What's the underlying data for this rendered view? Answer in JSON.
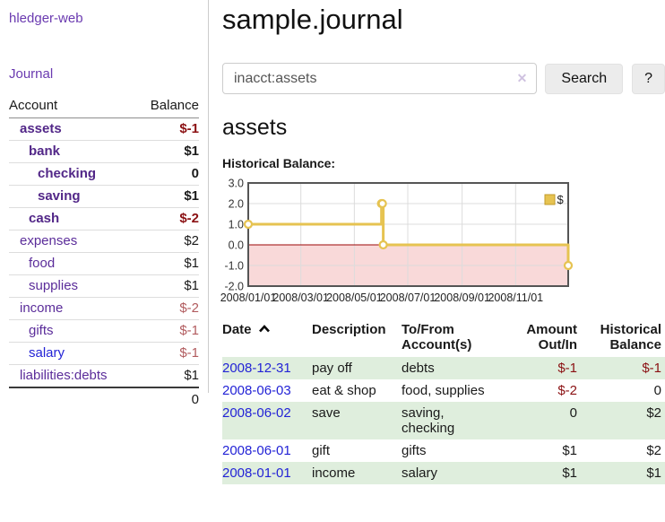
{
  "colors": {
    "link_purple": "#5b2d9a",
    "link_blue": "#2323d6",
    "negative_dark": "#8b1113",
    "negative_soft": "#b15b5e",
    "stripe_green": "#dfeedd",
    "button_bg": "#ececec",
    "chart_line_gold": "#e6c351",
    "negative_region_pink": "#f9d9d9",
    "zero_line_red": "#9c0606"
  },
  "sidebar": {
    "app_title": "hledger-web",
    "journal_label": "Journal",
    "accounts_table": {
      "account_header": "Account",
      "balance_header": "Balance",
      "rows": [
        {
          "name": "assets",
          "balance": "$-1",
          "level": 1,
          "matched": true
        },
        {
          "name": "bank",
          "balance": "$1",
          "level": 2,
          "matched": true
        },
        {
          "name": "checking",
          "balance": "0",
          "level": 3,
          "matched": true
        },
        {
          "name": "saving",
          "balance": "$1",
          "level": 3,
          "matched": true
        },
        {
          "name": "cash",
          "balance": "$-2",
          "level": 2,
          "matched": true
        },
        {
          "name": "expenses",
          "balance": "$2",
          "level": 1,
          "matched": false
        },
        {
          "name": "food",
          "balance": "$1",
          "level": 2,
          "matched": false
        },
        {
          "name": "supplies",
          "balance": "$1",
          "level": 2,
          "matched": false
        },
        {
          "name": "income",
          "balance": "$-2",
          "level": 1,
          "matched": false
        },
        {
          "name": "gifts",
          "balance": "$-1",
          "level": 2,
          "matched": false
        },
        {
          "name": "salary",
          "balance": "$-1",
          "level": 2,
          "matched": false,
          "unvisited": true
        },
        {
          "name": "liabilities:debts",
          "balance": "$1",
          "level": 1,
          "matched": false
        }
      ],
      "total": "0"
    }
  },
  "header": {
    "title": "sample.journal"
  },
  "search": {
    "value": "inacct:assets",
    "clear_icon": "✕",
    "button_label": "Search",
    "help_label": "?"
  },
  "account_page": {
    "heading": "assets",
    "chart_label": "Historical Balance:"
  },
  "chart_data": {
    "type": "line",
    "step": true,
    "title": "Historical Balance:",
    "grid": true,
    "ylim": [
      -2,
      3
    ],
    "x_range": [
      "2008-01-01",
      "2008-12-31"
    ],
    "y_ticks": [
      {
        "value": 3,
        "label": "3.0"
      },
      {
        "value": 2,
        "label": "2.0"
      },
      {
        "value": 1,
        "label": "1.0"
      },
      {
        "value": 0,
        "label": "0.0"
      },
      {
        "value": -1,
        "label": "-1.0"
      },
      {
        "value": -2,
        "label": "-2.0"
      }
    ],
    "x_ticks": [
      {
        "date": "2008-01-01",
        "label": "2008/01/01"
      },
      {
        "date": "2008-03-01",
        "label": "2008/03/01"
      },
      {
        "date": "2008-05-01",
        "label": "2008/05/01"
      },
      {
        "date": "2008-07-01",
        "label": "2008/07/01"
      },
      {
        "date": "2008-09-01",
        "label": "2008/09/01"
      },
      {
        "date": "2008-11-01",
        "label": "2008/11/01"
      }
    ],
    "legend": {
      "label": "$",
      "position": "top-right"
    },
    "series": [
      {
        "name": "$",
        "color": "#e6c351",
        "points": [
          [
            "2008-01-01",
            1
          ],
          [
            "2008-06-01",
            2
          ],
          [
            "2008-06-02",
            2
          ],
          [
            "2008-06-03",
            0
          ],
          [
            "2008-12-31",
            -1
          ]
        ]
      }
    ],
    "negative_region_shaded": true
  },
  "transactions": {
    "columns": {
      "date": "Date",
      "description": "Description",
      "accounts": "To/From\nAccount(s)",
      "amount": "Amount\nOut/In",
      "balance": "Historical\nBalance"
    },
    "sort": {
      "column": "date",
      "direction": "ascending"
    },
    "rows": [
      {
        "date": "2008-12-31",
        "description": "pay off",
        "accounts": "debts",
        "amount": "$-1",
        "balance": "$-1"
      },
      {
        "date": "2008-06-03",
        "description": "eat & shop",
        "accounts": "food, supplies",
        "amount": "$-2",
        "balance": "0"
      },
      {
        "date": "2008-06-02",
        "description": "save",
        "accounts": "saving,\nchecking",
        "amount": "0",
        "balance": "$2"
      },
      {
        "date": "2008-06-01",
        "description": "gift",
        "accounts": "gifts",
        "amount": "$1",
        "balance": "$2"
      },
      {
        "date": "2008-01-01",
        "description": "income",
        "accounts": "salary",
        "amount": "$1",
        "balance": "$1"
      }
    ]
  }
}
